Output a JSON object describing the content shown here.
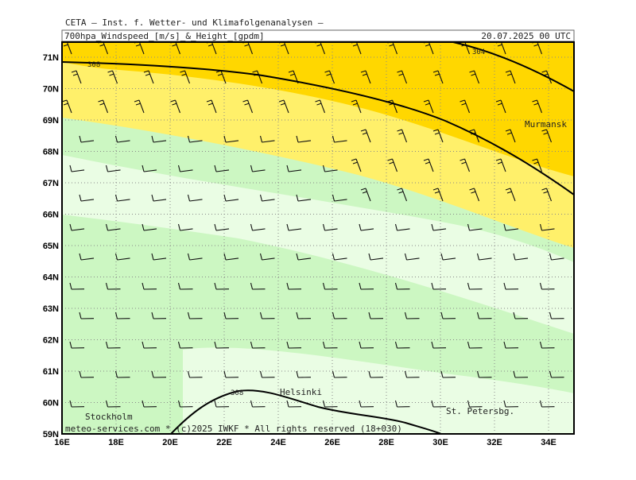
{
  "header": {
    "institute": "CETA — Inst. f. Wetter- und Klimafolgenanalysen —",
    "title": "700hpa_Windspeed_[m/s]_&_Height_[gpdm]",
    "date": "20.07.2025 00 UTC"
  },
  "axes": {
    "lon_labels": [
      "16E",
      "18E",
      "20E",
      "22E",
      "24E",
      "26E",
      "28E",
      "30E",
      "32E",
      "34E"
    ],
    "lat_labels": [
      "71N",
      "70N",
      "69N",
      "68N",
      "67N",
      "66N",
      "65N",
      "64N",
      "63N",
      "62N",
      "61N",
      "60N",
      "59N"
    ]
  },
  "places": [
    {
      "label": "Murmansk"
    },
    {
      "label": "Helsinki"
    },
    {
      "label": "Stockholm"
    },
    {
      "label": "St. Petersbg."
    }
  ],
  "contour_labels": [
    "308",
    "304",
    "308"
  ],
  "footer": "meteo-services.com * (c)2025 IWKF * All rights reserved (18+030)"
}
